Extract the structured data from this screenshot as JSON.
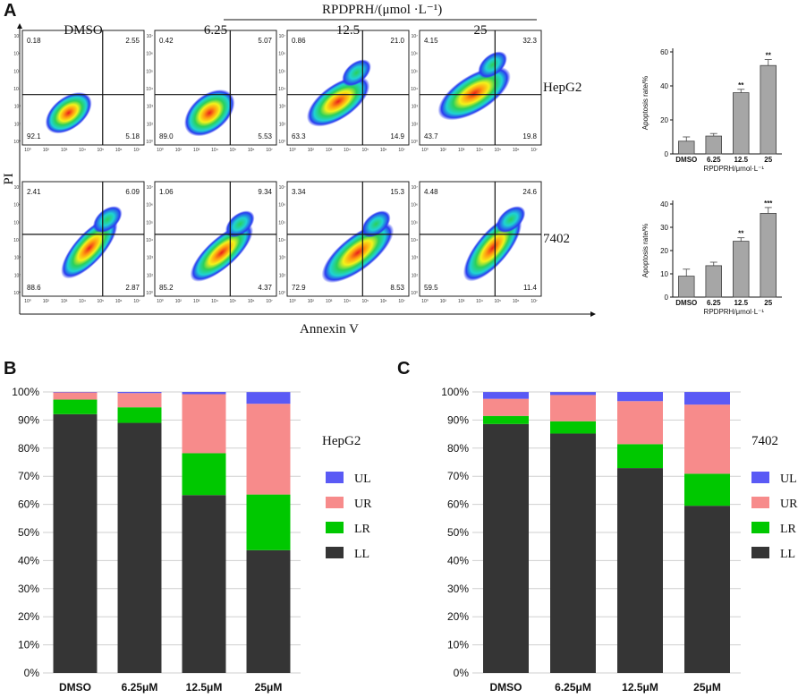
{
  "panels": {
    "a": "A",
    "b": "B",
    "c": "C"
  },
  "flow": {
    "treatment_header": "RPDPRH/(μmol ·L⁻¹)",
    "columns": [
      "DMSO",
      "6.25",
      "12.5",
      "25"
    ],
    "rows": [
      "HepG2",
      "7402"
    ],
    "y_axis_label": "PI",
    "x_axis_label": "Annexin V",
    "tick_labels": [
      "10⁰",
      "10²",
      "10³",
      "10⁴",
      "10⁵",
      "10⁶",
      "10⁷"
    ],
    "quadrants": [
      [
        {
          "ul": "0.18",
          "ur": "2.55",
          "ll": "92.1",
          "lr": "5.18"
        },
        {
          "ul": "0.42",
          "ur": "5.07",
          "ll": "89.0",
          "lr": "5.53"
        },
        {
          "ul": "0.86",
          "ur": "21.0",
          "ll": "63.3",
          "lr": "14.9"
        },
        {
          "ul": "4.15",
          "ur": "32.3",
          "ll": "43.7",
          "lr": "19.8"
        }
      ],
      [
        {
          "ul": "2.41",
          "ur": "6.09",
          "ll": "88.6",
          "lr": "2.87"
        },
        {
          "ul": "1.06",
          "ur": "9.34",
          "ll": "85.2",
          "lr": "4.37"
        },
        {
          "ul": "3.34",
          "ur": "15.3",
          "ll": "72.9",
          "lr": "8.53"
        },
        {
          "ul": "4.48",
          "ur": "24.6",
          "ll": "59.5",
          "lr": "11.4"
        }
      ]
    ]
  },
  "chart_data": [
    {
      "type": "bar",
      "title": "",
      "categories": [
        "DMSO",
        "6.25",
        "12.5",
        "25"
      ],
      "values": [
        7.5,
        10.5,
        36,
        52
      ],
      "errors": [
        2.5,
        1.5,
        2.0,
        3.5
      ],
      "significance": [
        "",
        "",
        "**",
        "**"
      ],
      "ylabel": "Apoptosis rate/%",
      "xlabel": "RPDPRH/μmol·L⁻¹",
      "ylim": [
        0,
        60
      ],
      "yticks": [
        0,
        20,
        40,
        60
      ],
      "color": "#a6a6a6"
    },
    {
      "type": "bar",
      "title": "",
      "categories": [
        "DMSO",
        "6.25",
        "12.5",
        "25"
      ],
      "values": [
        9,
        13.5,
        24,
        36
      ],
      "errors": [
        3,
        1.5,
        1.5,
        2.5
      ],
      "significance": [
        "",
        "",
        "**",
        "***"
      ],
      "ylabel": "Apoptosis rate/%",
      "xlabel": "RPDPRH/μmol·L⁻¹",
      "ylim": [
        0,
        40
      ],
      "yticks": [
        0,
        10,
        20,
        30,
        40
      ],
      "color": "#a6a6a6"
    },
    {
      "type": "bar",
      "stacked": true,
      "title": "HepG2",
      "categories": [
        "DMSO",
        "6.25μM",
        "12.5μM",
        "25μM"
      ],
      "series": [
        {
          "name": "LL",
          "color": "#353535",
          "values": [
            92.1,
            89.0,
            63.3,
            43.7
          ]
        },
        {
          "name": "LR",
          "color": "#00c800",
          "values": [
            5.18,
            5.53,
            14.9,
            19.8
          ]
        },
        {
          "name": "UR",
          "color": "#f78b8b",
          "values": [
            2.55,
            5.07,
            21.0,
            32.3
          ]
        },
        {
          "name": "UL",
          "color": "#5a5af5",
          "values": [
            0.18,
            0.42,
            0.86,
            4.15
          ]
        }
      ],
      "legend_order": [
        "UL",
        "UR",
        "LR",
        "LL"
      ],
      "ylim": [
        0,
        100
      ],
      "yticks": [
        "0%",
        "10%",
        "20%",
        "30%",
        "40%",
        "50%",
        "60%",
        "70%",
        "80%",
        "90%",
        "100%"
      ]
    },
    {
      "type": "bar",
      "stacked": true,
      "title": "7402",
      "categories": [
        "DMSO",
        "6.25μM",
        "12.5μM",
        "25μM"
      ],
      "series": [
        {
          "name": "LL",
          "color": "#353535",
          "values": [
            88.6,
            85.2,
            72.9,
            59.5
          ]
        },
        {
          "name": "LR",
          "color": "#00c800",
          "values": [
            2.87,
            4.37,
            8.53,
            11.4
          ]
        },
        {
          "name": "UR",
          "color": "#f78b8b",
          "values": [
            6.09,
            9.34,
            15.3,
            24.6
          ]
        },
        {
          "name": "UL",
          "color": "#5a5af5",
          "values": [
            2.41,
            1.06,
            3.34,
            4.48
          ]
        }
      ],
      "legend_order": [
        "UL",
        "UR",
        "LR",
        "LL"
      ],
      "ylim": [
        0,
        100
      ],
      "yticks": [
        "0%",
        "10%",
        "20%",
        "30%",
        "40%",
        "50%",
        "60%",
        "70%",
        "80%",
        "90%",
        "100%"
      ]
    }
  ]
}
